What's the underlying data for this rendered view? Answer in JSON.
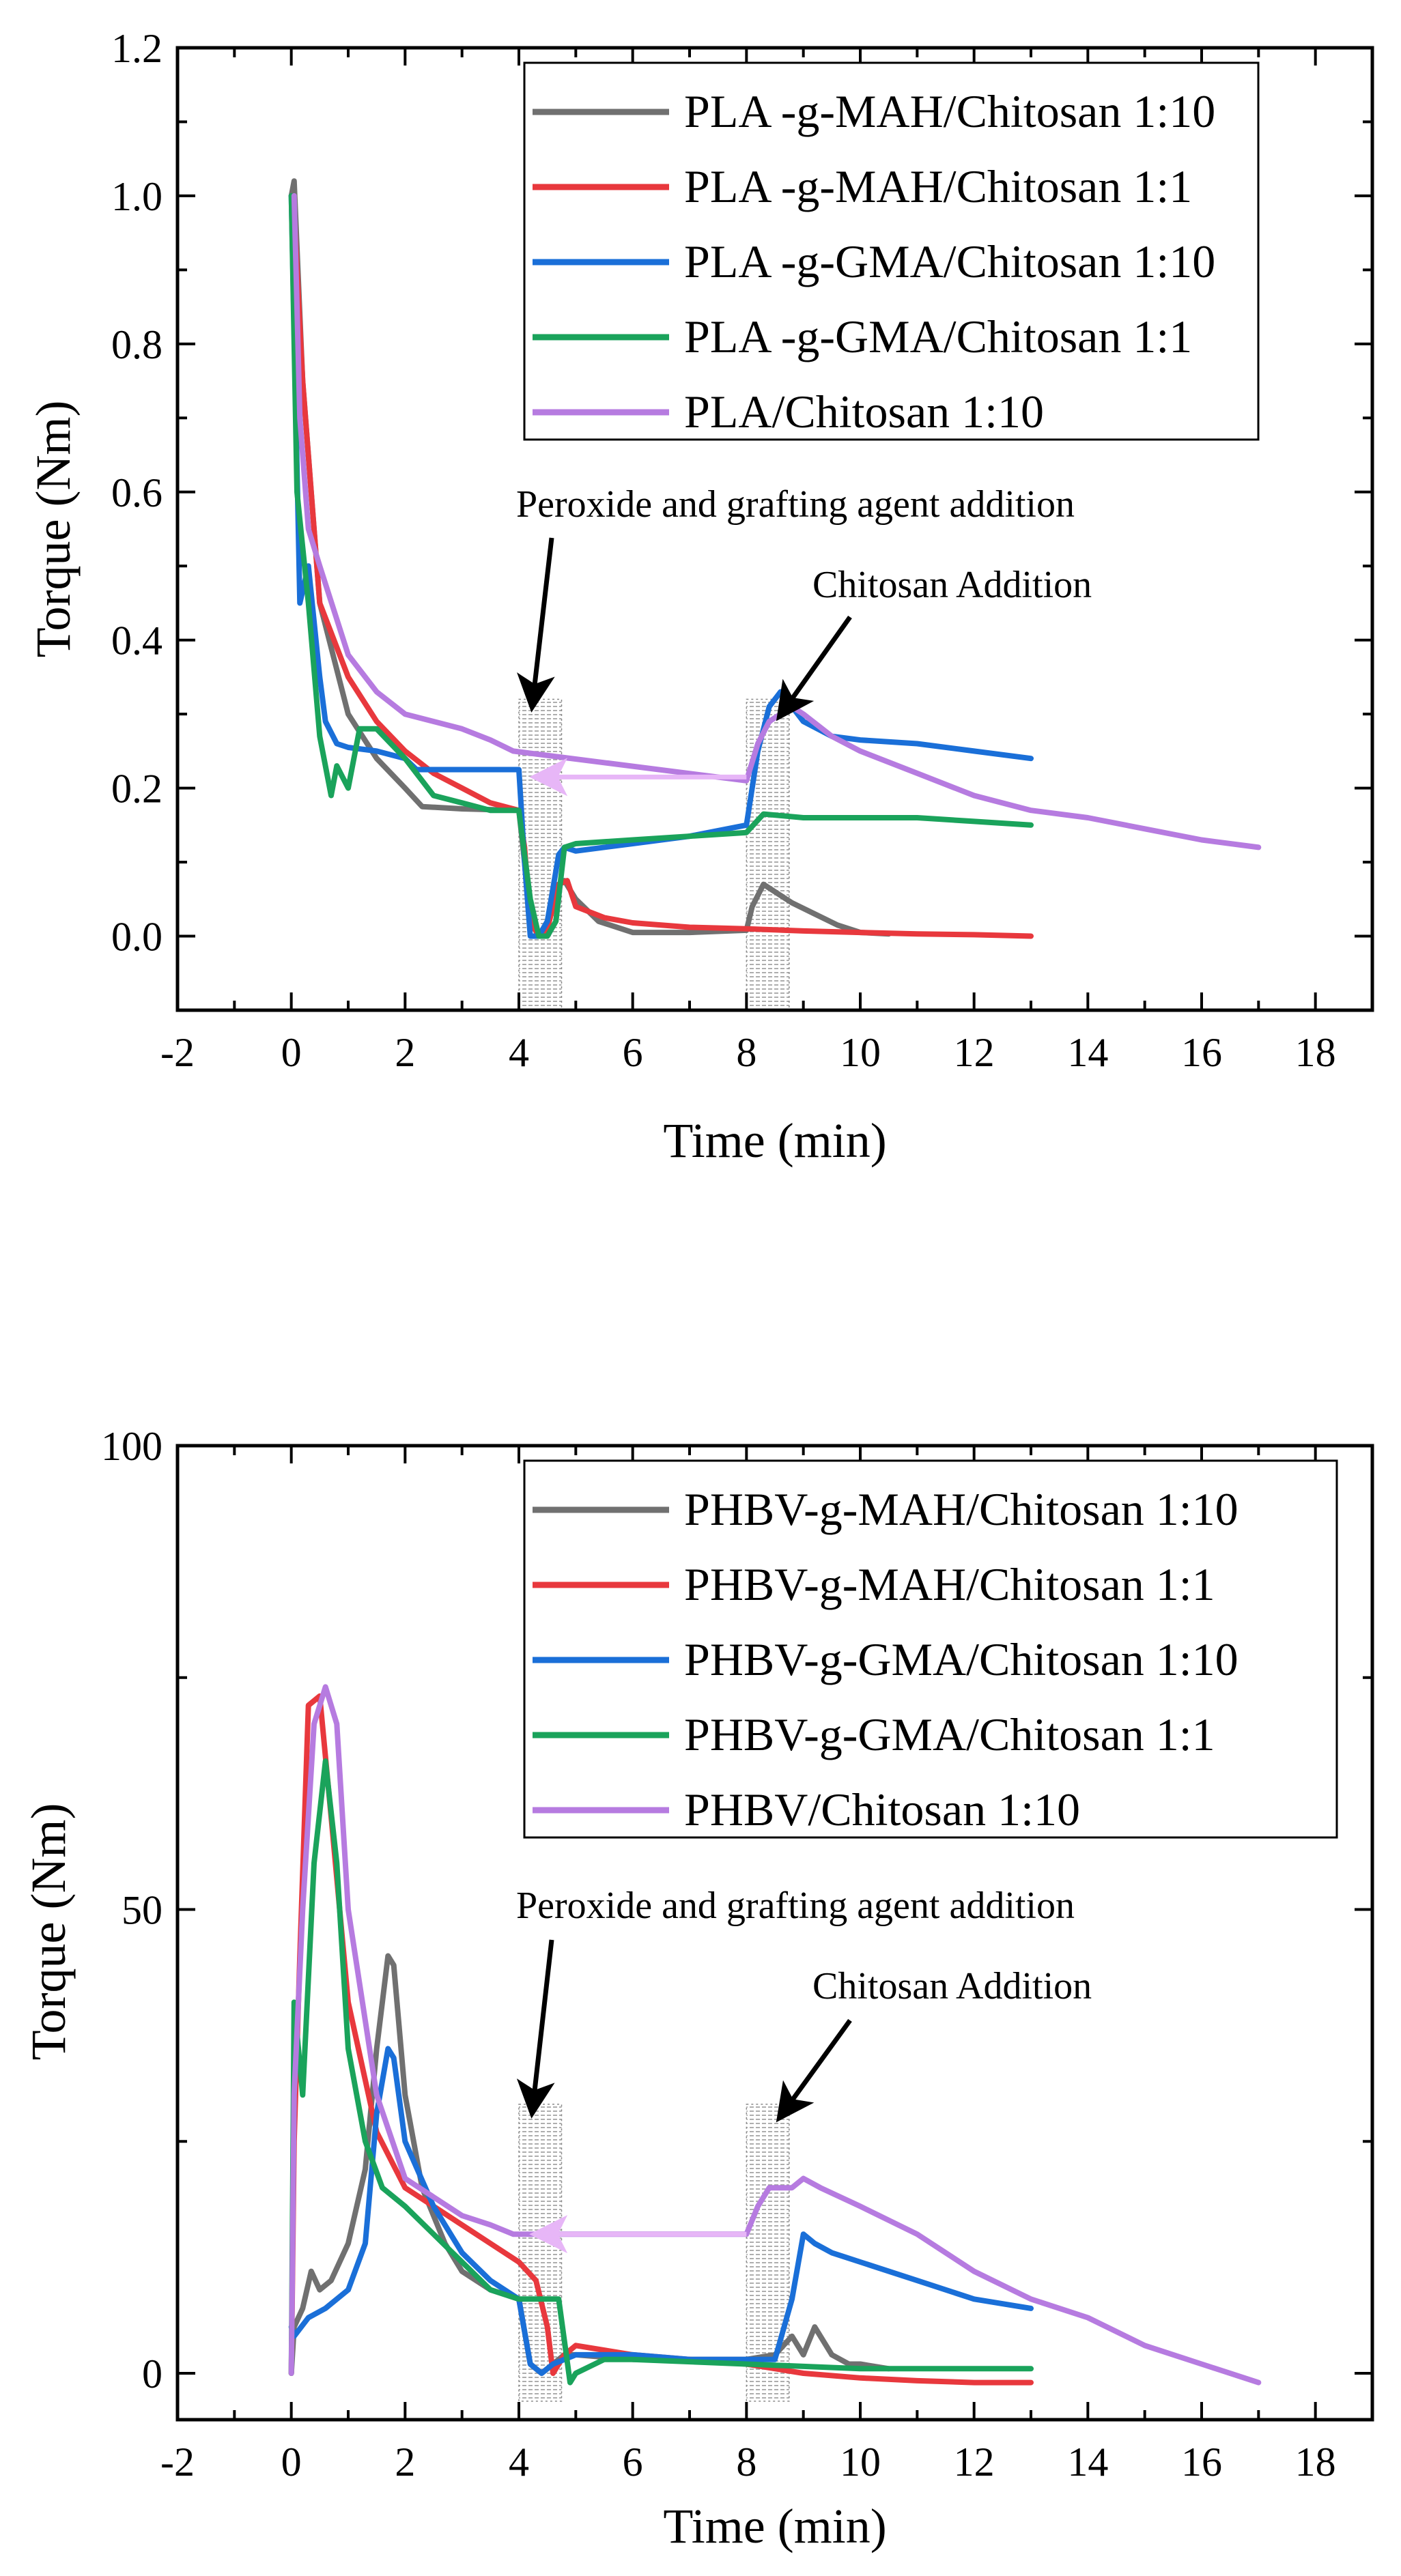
{
  "chart_data": [
    {
      "type": "line",
      "xlabel": "Time (min)",
      "ylabel": "Torque (Nm)",
      "xlim": [
        -2,
        19
      ],
      "ylim": [
        -0.1,
        1.2
      ],
      "xticks": [
        -2,
        0,
        2,
        4,
        6,
        8,
        10,
        12,
        14,
        16,
        18
      ],
      "yticks": [
        0.0,
        0.2,
        0.4,
        0.6,
        0.8,
        1.0,
        1.2
      ],
      "ytick_labels": [
        "0.0",
        "0.2",
        "0.4",
        "0.6",
        "0.8",
        "1.0",
        "1.2"
      ],
      "legend_position": "top-right",
      "annotations": {
        "peroxide": "Peroxide and grafting agent addition",
        "chitosan": "Chitosan Addition"
      },
      "band_range": [
        -0.1,
        0.32
      ],
      "arrow_y": 0.215,
      "series": [
        {
          "name": "PLA -g-MAH/Chitosan 1:10",
          "color": "#707070",
          "x": [
            0,
            0.05,
            0.2,
            0.5,
            1.0,
            1.5,
            2.0,
            2.3,
            3.0,
            4.0,
            4.1,
            4.2,
            4.35,
            4.5,
            4.7,
            4.8,
            5.0,
            5.4,
            6.0,
            7.0,
            8.0,
            8.1,
            8.3,
            8.5,
            8.8,
            9.2,
            9.6,
            10.0,
            10.5
          ],
          "y": [
            1.0,
            1.02,
            0.75,
            0.45,
            0.3,
            0.24,
            0.2,
            0.175,
            0.172,
            0.17,
            0.1,
            0.02,
            0.0,
            0.02,
            0.07,
            0.075,
            0.05,
            0.02,
            0.005,
            0.005,
            0.008,
            0.04,
            0.07,
            0.06,
            0.045,
            0.03,
            0.015,
            0.005,
            0.003
          ]
        },
        {
          "name": "PLA -g-MAH/Chitosan 1:1",
          "color": "#e8383d",
          "x": [
            0,
            0.05,
            0.2,
            0.5,
            1.0,
            1.5,
            2.0,
            2.5,
            3.0,
            3.5,
            4.0,
            4.1,
            4.2,
            4.35,
            4.5,
            4.7,
            4.85,
            5.0,
            5.5,
            6.0,
            7.0,
            8.0,
            9.0,
            10.0,
            11.0,
            12.0,
            13.0
          ],
          "y": [
            1.0,
            0.98,
            0.75,
            0.45,
            0.35,
            0.29,
            0.25,
            0.22,
            0.2,
            0.18,
            0.17,
            0.12,
            0.02,
            0.0,
            0.01,
            0.07,
            0.075,
            0.04,
            0.025,
            0.018,
            0.012,
            0.01,
            0.007,
            0.005,
            0.003,
            0.002,
            0.0
          ]
        },
        {
          "name": "PLA -g-GMA/Chitosan 1:10",
          "color": "#1a6fd8",
          "x": [
            0,
            0.15,
            0.3,
            0.5,
            0.6,
            0.8,
            1.0,
            1.5,
            2.0,
            2.2,
            3.0,
            4.0,
            4.1,
            4.2,
            4.35,
            4.5,
            4.7,
            4.8,
            5.0,
            6.0,
            7.0,
            8.0,
            8.2,
            8.4,
            8.6,
            8.8,
            9.0,
            9.5,
            10.0,
            11.0,
            12.0,
            13.0
          ],
          "y": [
            1.0,
            0.45,
            0.5,
            0.35,
            0.29,
            0.26,
            0.255,
            0.25,
            0.24,
            0.225,
            0.225,
            0.225,
            0.1,
            0.0,
            0.0,
            0.02,
            0.11,
            0.12,
            0.115,
            0.125,
            0.135,
            0.15,
            0.25,
            0.31,
            0.33,
            0.31,
            0.29,
            0.27,
            0.265,
            0.26,
            0.25,
            0.24
          ]
        },
        {
          "name": "PLA -g-GMA/Chitosan 1:1",
          "color": "#1aa35b",
          "x": [
            0,
            0.1,
            0.3,
            0.5,
            0.7,
            0.8,
            1.0,
            1.2,
            1.5,
            2.0,
            2.5,
            3.0,
            3.5,
            4.0,
            4.2,
            4.35,
            4.5,
            4.65,
            4.8,
            5.0,
            6.0,
            7.0,
            8.0,
            8.3,
            9.0,
            10.0,
            11.0,
            12.0,
            13.0
          ],
          "y": [
            1.0,
            0.6,
            0.45,
            0.27,
            0.19,
            0.23,
            0.2,
            0.28,
            0.28,
            0.24,
            0.19,
            0.18,
            0.17,
            0.17,
            0.05,
            0.0,
            0.0,
            0.02,
            0.12,
            0.125,
            0.13,
            0.135,
            0.14,
            0.165,
            0.16,
            0.16,
            0.16,
            0.155,
            0.15
          ]
        },
        {
          "name": "PLA/Chitosan 1:10",
          "color": "#b67be0",
          "x": [
            0.05,
            0.15,
            0.3,
            0.5,
            1.0,
            1.5,
            2.0,
            2.5,
            3.0,
            3.5,
            3.9,
            8.0,
            8.2,
            8.4,
            8.6,
            8.8,
            9.0,
            9.5,
            10.0,
            11.0,
            12.0,
            13.0,
            14.0,
            15.0,
            16.0,
            17.0
          ],
          "y": [
            1.0,
            0.7,
            0.55,
            0.5,
            0.38,
            0.33,
            0.3,
            0.29,
            0.28,
            0.265,
            0.25,
            0.21,
            0.26,
            0.29,
            0.3,
            0.31,
            0.3,
            0.27,
            0.25,
            0.22,
            0.19,
            0.17,
            0.16,
            0.145,
            0.13,
            0.12
          ]
        }
      ]
    },
    {
      "type": "line",
      "xlabel": "Time (min)",
      "ylabel": "Torque (Nm)",
      "xlim": [
        -2,
        19
      ],
      "ylim": [
        -5,
        100
      ],
      "xticks": [
        -2,
        0,
        2,
        4,
        6,
        8,
        10,
        12,
        14,
        16,
        18
      ],
      "yticks": [
        0,
        50,
        100
      ],
      "ytick_labels": [
        "0",
        "50",
        "100"
      ],
      "legend_position": "top-right",
      "annotations": {
        "peroxide": "Peroxide and grafting agent addition",
        "chitosan": "Chitosan Addition"
      },
      "band_range": [
        -3,
        29
      ],
      "arrow_y": 15,
      "series": [
        {
          "name": "PHBV-g-MAH/Chitosan 1:10",
          "color": "#707070",
          "x": [
            0,
            0.05,
            0.2,
            0.35,
            0.5,
            0.7,
            1.0,
            1.3,
            1.5,
            1.7,
            1.8,
            2.0,
            2.3,
            2.7,
            3.0,
            3.5,
            4.0,
            4.2,
            4.4,
            4.6,
            4.8,
            5.0,
            6.0,
            7.0,
            8.0,
            8.5,
            8.8,
            9.0,
            9.2,
            9.5,
            9.8,
            10.0,
            10.5
          ],
          "y": [
            0,
            5,
            7,
            11,
            9,
            10,
            14,
            22,
            35,
            45,
            44,
            30,
            20,
            14,
            11,
            9,
            8,
            1,
            0,
            1,
            2,
            2,
            1.5,
            1.5,
            1.5,
            2,
            4,
            2,
            5,
            2,
            1,
            1,
            0.5
          ]
        },
        {
          "name": "PHBV-g-MAH/Chitosan 1:1",
          "color": "#e8383d",
          "x": [
            0,
            0.05,
            0.15,
            0.3,
            0.5,
            0.7,
            1.0,
            1.5,
            2.0,
            2.5,
            3.0,
            3.5,
            4.0,
            4.3,
            4.5,
            4.6,
            4.8,
            5.0,
            6.0,
            7.0,
            8.0,
            9.0,
            10.0,
            11.0,
            12.0,
            13.0
          ],
          "y": [
            0,
            25,
            45,
            72,
            73,
            60,
            40,
            26,
            20,
            18,
            16,
            14,
            12,
            10,
            5,
            0,
            2,
            3,
            2,
            1.5,
            1,
            0,
            -0.5,
            -0.8,
            -1,
            -1
          ]
        },
        {
          "name": "PHBV-g-GMA/Chitosan 1:10",
          "color": "#1a6fd8",
          "x": [
            0,
            0.05,
            0.3,
            0.6,
            1.0,
            1.3,
            1.5,
            1.7,
            1.8,
            2.0,
            2.5,
            3.0,
            3.5,
            4.0,
            4.2,
            4.4,
            4.6,
            5.0,
            6.0,
            7.0,
            8.0,
            8.5,
            8.8,
            9.0,
            9.2,
            9.5,
            10.0,
            11.0,
            12.0,
            13.0
          ],
          "y": [
            5,
            4,
            6,
            7,
            9,
            14,
            28,
            35,
            34,
            25,
            18,
            13,
            10,
            8,
            1,
            0,
            1,
            2,
            2,
            1.5,
            1.5,
            1.5,
            8,
            15,
            14,
            13,
            12,
            10,
            8,
            7
          ]
        },
        {
          "name": "PHBV-g-GMA/Chitosan 1:1",
          "color": "#1aa35b",
          "x": [
            0,
            0.05,
            0.2,
            0.4,
            0.6,
            0.8,
            1.0,
            1.3,
            1.6,
            2.0,
            2.5,
            3.0,
            3.5,
            4.0,
            4.3,
            4.7,
            4.9,
            5.0,
            5.5,
            6.0,
            8.0,
            10.0,
            12.0,
            13.0
          ],
          "y": [
            0,
            40,
            30,
            55,
            66,
            55,
            35,
            25,
            20,
            18,
            15,
            12,
            9,
            8,
            8,
            8,
            -1,
            0,
            1.5,
            1.5,
            1,
            0.5,
            0.5,
            0.5
          ]
        },
        {
          "name": "PHBV/Chitosan 1:10",
          "color": "#b67be0",
          "x": [
            0,
            0.05,
            0.2,
            0.4,
            0.6,
            0.8,
            1.0,
            1.5,
            2.0,
            2.5,
            3.0,
            3.5,
            3.9,
            8.0,
            8.2,
            8.4,
            8.6,
            8.8,
            9.0,
            9.3,
            10.0,
            11.0,
            12.0,
            13.0,
            14.0,
            15.0,
            16.0,
            17.0
          ],
          "y": [
            0,
            30,
            50,
            70,
            74,
            70,
            50,
            30,
            21,
            19,
            17,
            16,
            15,
            15,
            18,
            20,
            20,
            20,
            21,
            20,
            18,
            15,
            11,
            8,
            6,
            3,
            1,
            -1
          ]
        }
      ]
    }
  ]
}
